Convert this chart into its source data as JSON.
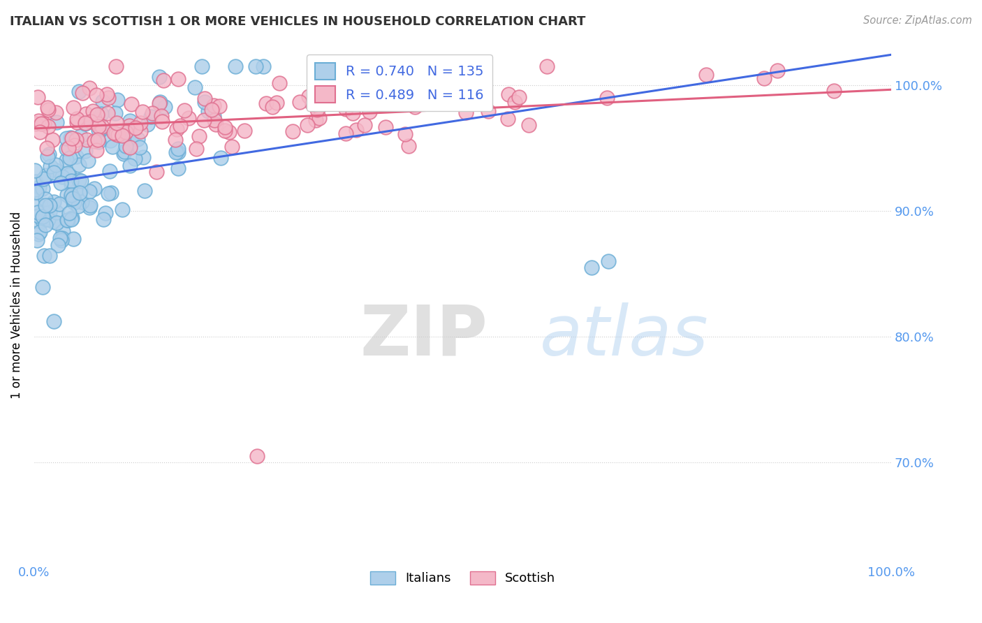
{
  "title": "ITALIAN VS SCOTTISH 1 OR MORE VEHICLES IN HOUSEHOLD CORRELATION CHART",
  "source": "Source: ZipAtlas.com",
  "ylabel": "1 or more Vehicles in Household",
  "legend_italians": "Italians",
  "legend_scottish": "Scottish",
  "r_italians": 0.74,
  "n_italians": 135,
  "r_scottish": 0.489,
  "n_scottish": 116,
  "color_italians_face": "#AECFEA",
  "color_italians_edge": "#6BAED6",
  "color_scottish_face": "#F4B8C8",
  "color_scottish_edge": "#E07090",
  "color_line_italians": "#4169E1",
  "color_line_scottish": "#E06080",
  "background_color": "#FFFFFF",
  "watermark_zip": "ZIP",
  "watermark_atlas": "atlas",
  "xlim": [
    0.0,
    100.0
  ],
  "ylim": [
    62.0,
    103.0
  ],
  "ytick_vals": [
    70.0,
    80.0,
    90.0,
    100.0
  ],
  "grid_color": "#CCCCCC",
  "tick_color": "#5599EE",
  "title_color": "#333333",
  "source_color": "#999999"
}
